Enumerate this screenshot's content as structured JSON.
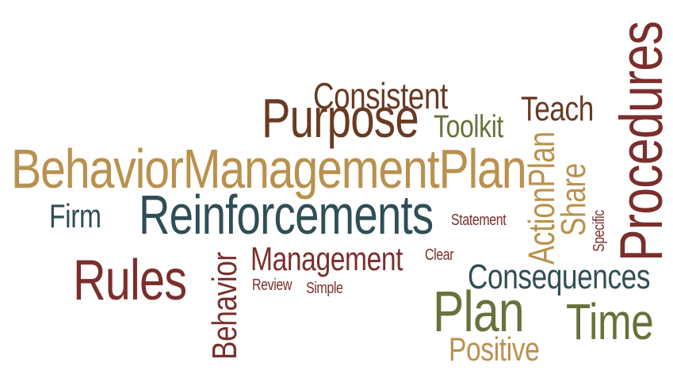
{
  "colors": {
    "gold": "#b9914e",
    "teal": "#2f4e55",
    "maroon": "#7a2f2c",
    "olive": "#66723a",
    "brown": "#6a3a22",
    "background": "#ffffff"
  },
  "words": {
    "behavior_management_plan": {
      "text": "BehaviorManagementPlan",
      "color": "#b9914e"
    },
    "reinforcements": {
      "text": "Reinforcements",
      "color": "#2f4e55"
    },
    "purpose": {
      "text": "Purpose",
      "color": "#6a3a22"
    },
    "consistent": {
      "text": "Consistent",
      "color": "#6a3a22"
    },
    "toolkit": {
      "text": "Toolkit",
      "color": "#66723a"
    },
    "teach": {
      "text": "Teach",
      "color": "#6a3a22"
    },
    "firm": {
      "text": "Firm",
      "color": "#2f4e55"
    },
    "rules": {
      "text": "Rules",
      "color": "#7a2f2c"
    },
    "management": {
      "text": "Management",
      "color": "#7a2f2c"
    },
    "review": {
      "text": "Review",
      "color": "#7a2f2c"
    },
    "simple": {
      "text": "Simple",
      "color": "#7a2f2c"
    },
    "statement": {
      "text": "Statement",
      "color": "#7a2f2c"
    },
    "clear": {
      "text": "Clear",
      "color": "#7a2f2c"
    },
    "consequences": {
      "text": "Consequences",
      "color": "#2f4e55"
    },
    "plan": {
      "text": "Plan",
      "color": "#66723a"
    },
    "time": {
      "text": "Time",
      "color": "#66723a"
    },
    "positive": {
      "text": "Positive",
      "color": "#b9914e"
    },
    "behavior": {
      "text": "Behavior",
      "color": "#7a2f2c"
    },
    "action_plan": {
      "text": "ActionPlan",
      "color": "#b9914e"
    },
    "share": {
      "text": "Share",
      "color": "#b9914e"
    },
    "specific": {
      "text": "Specific",
      "color": "#7a2f2c"
    },
    "procedures": {
      "text": "Procedures",
      "color": "#7a2f2c"
    }
  }
}
